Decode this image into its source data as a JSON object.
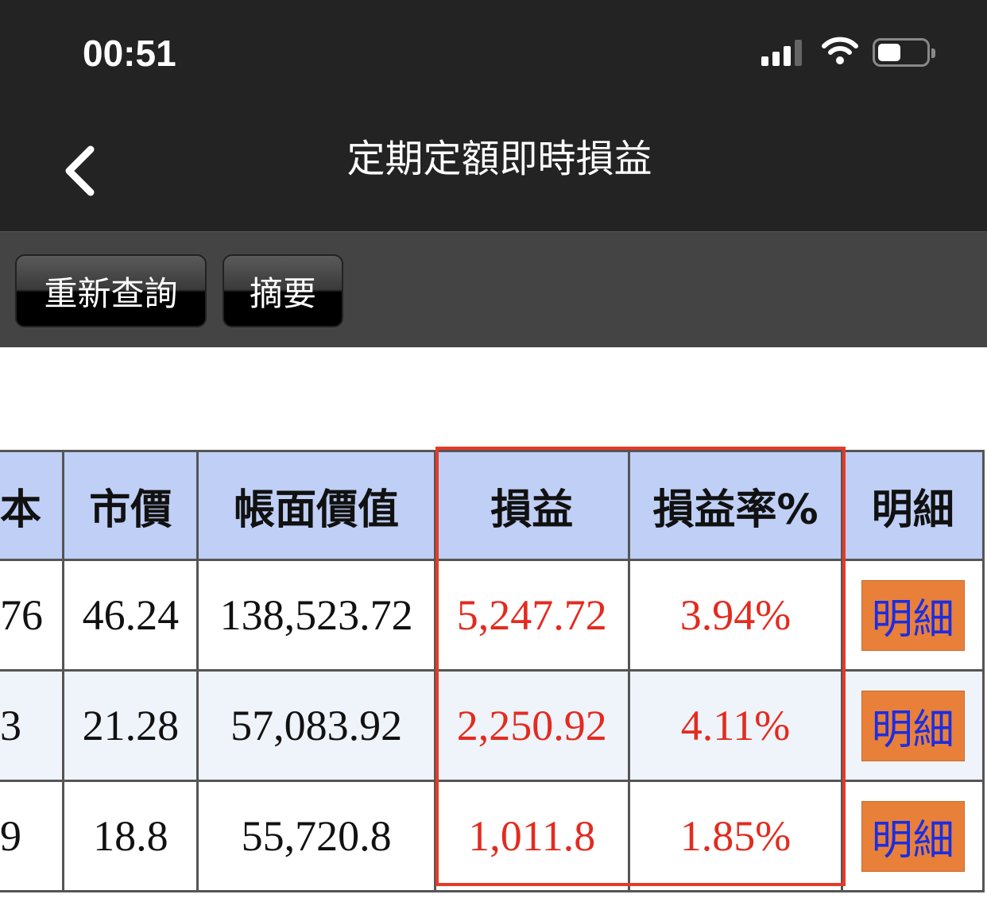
{
  "status_bar": {
    "time": "00:51",
    "signal_bars": 3,
    "battery_level": 0.4
  },
  "nav": {
    "title": "定期定額即時損益",
    "back_icon": "chevron-left-icon"
  },
  "toolbar": {
    "requery_label": "重新查詢",
    "summary_label": "摘要"
  },
  "table": {
    "headers": [
      "本",
      "市價",
      "帳面價值",
      "損益",
      "損益率%",
      "明細"
    ],
    "rows": [
      {
        "cost": "76",
        "price": "46.24",
        "book_value": "138,523.72",
        "pnl": "5,247.72",
        "pnl_rate": "3.94%",
        "detail": "明細"
      },
      {
        "cost": "3",
        "price": "21.28",
        "book_value": "57,083.92",
        "pnl": "2,250.92",
        "pnl_rate": "4.11%",
        "detail": "明細"
      },
      {
        "cost": "9",
        "price": "18.8",
        "book_value": "55,720.8",
        "pnl": "1,011.8",
        "pnl_rate": "1.85%",
        "detail": "明細"
      }
    ]
  },
  "colors": {
    "header_bg": "#bfcff5",
    "profit": "#e32b1f",
    "detail_button": "#e8803a",
    "highlight": "#e53a27"
  }
}
